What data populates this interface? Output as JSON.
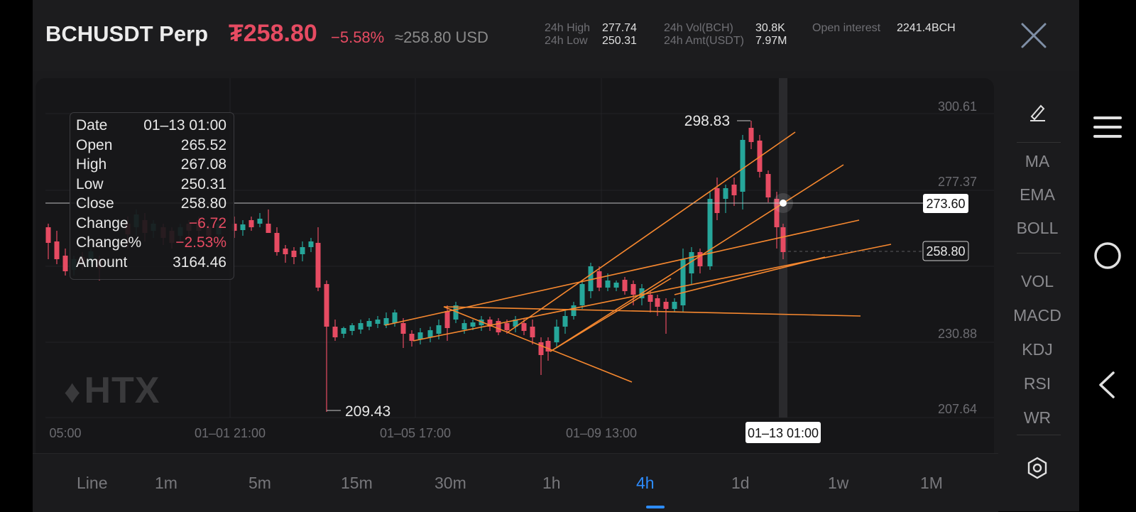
{
  "header": {
    "symbol": "BCHUSDT Perp",
    "price": "₮258.80",
    "change_pct": "−5.58%",
    "usd_equiv": "≈258.80 USD",
    "stats": {
      "high_label": "24h High",
      "high_value": "277.74",
      "low_label": "24h Low",
      "low_value": "250.31",
      "vol_label": "24h Vol(BCH)",
      "vol_value": "30.8K",
      "amt_label": "24h Amt(USDT)",
      "amt_value": "7.97M",
      "oi_label": "Open interest",
      "oi_value": "2241.4BCH"
    },
    "close_icon": "close-icon"
  },
  "chart": {
    "y_ticks": [
      "300.61",
      "277.37",
      "230.88",
      "207.64"
    ],
    "x_ticks": [
      "05:00",
      "01–01 21:00",
      "01–05 17:00",
      "01–09 13:00"
    ],
    "crosshair_price": "273.60",
    "current_price": "258.80",
    "crosshair_date": "01–13 01:00",
    "max_label": "298.83",
    "min_label": "209.43",
    "watermark": "HTX",
    "colors": {
      "up": "#26a69a",
      "down": "#e64b62",
      "drawing": "#f7882f"
    }
  },
  "tooltip": {
    "rows": [
      {
        "label": "Date",
        "value": "01–13 01:00"
      },
      {
        "label": "Open",
        "value": "265.52"
      },
      {
        "label": "High",
        "value": "267.08"
      },
      {
        "label": "Low",
        "value": "250.31"
      },
      {
        "label": "Close",
        "value": "258.80"
      },
      {
        "label": "Change",
        "value": "−6.72"
      },
      {
        "label": "Change%",
        "value": "−2.53%"
      },
      {
        "label": "Amount",
        "value": "3164.46"
      }
    ]
  },
  "indicators": {
    "draw_icon": "pencil-icon",
    "main": [
      "MA",
      "EMA",
      "BOLL"
    ],
    "sub": [
      "VOL",
      "MACD",
      "KDJ",
      "RSI",
      "WR"
    ],
    "settings_icon": "settings-icon"
  },
  "timeframes": {
    "items": [
      "Line",
      "1m",
      "5m",
      "15m",
      "30m",
      "1h",
      "4h",
      "1d",
      "1w",
      "1M"
    ],
    "active": "4h"
  },
  "nav": {
    "icons": [
      "menu-icon",
      "home-circle-icon",
      "back-icon"
    ]
  }
}
